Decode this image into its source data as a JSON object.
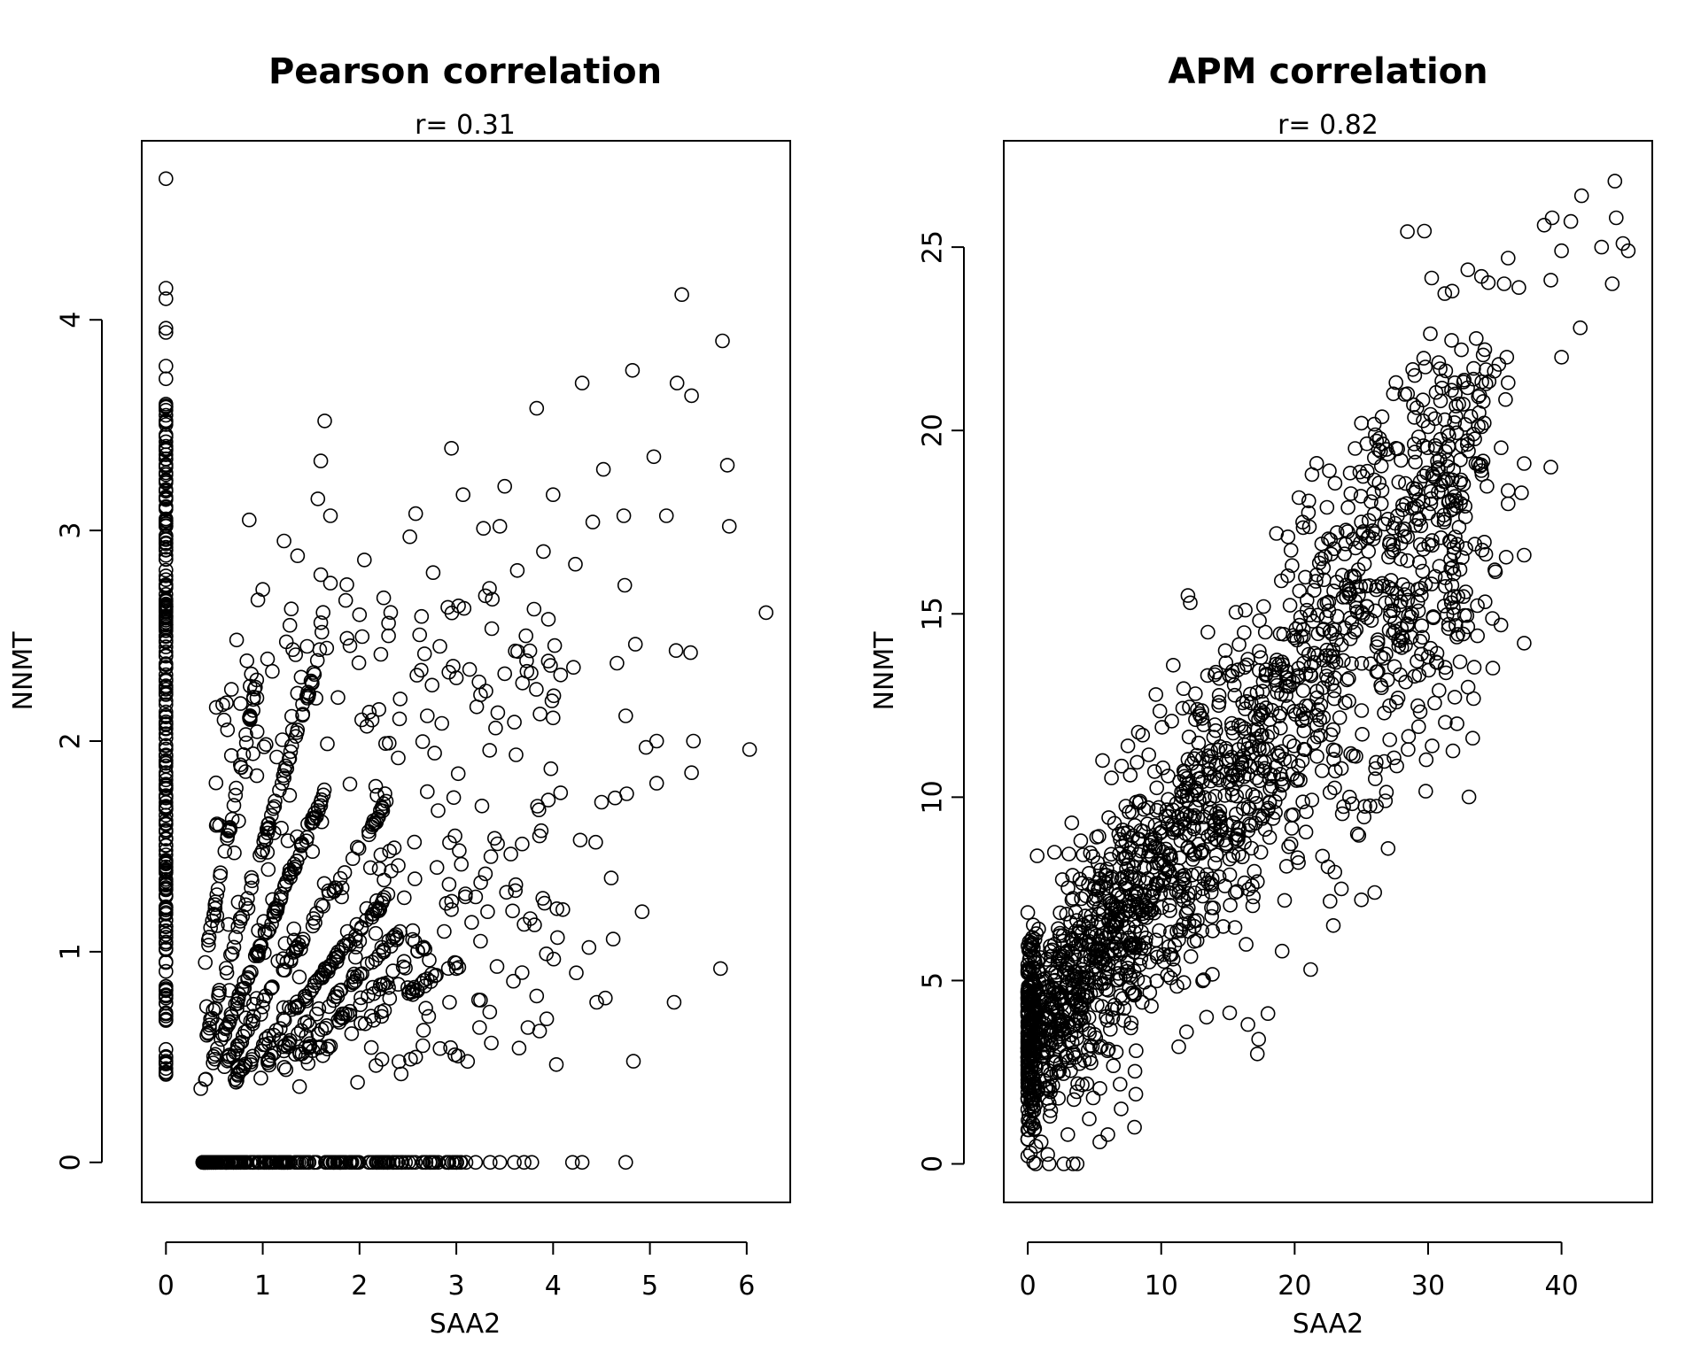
{
  "chart_data": [
    {
      "type": "scatter",
      "title": "Pearson correlation",
      "subtitle": "r= 0.31",
      "xlabel": "SAA2",
      "ylabel": "NNMT",
      "xlim": [
        -0.25,
        6.45
      ],
      "ylim": [
        -0.19,
        4.85
      ],
      "xticks": [
        0,
        1,
        2,
        3,
        4,
        5,
        6
      ],
      "yticks": [
        0,
        1,
        2,
        3,
        4
      ],
      "xtick_labels": [
        "0",
        "1",
        "2",
        "3",
        "4",
        "5",
        "6"
      ],
      "ytick_labels": [
        "0",
        "1",
        "2",
        "3",
        "4"
      ],
      "points": [
        [
          0,
          4.67
        ],
        [
          0,
          4.15
        ],
        [
          0,
          4.1
        ],
        [
          0,
          3.96
        ],
        [
          0,
          3.94
        ],
        [
          0,
          3.78
        ],
        [
          0,
          3.72
        ],
        [
          0,
          3.6
        ],
        [
          5.33,
          4.12
        ],
        [
          5.75,
          3.9
        ],
        [
          4.82,
          3.76
        ],
        [
          4.3,
          3.7
        ],
        [
          5.28,
          3.7
        ],
        [
          3.83,
          3.58
        ],
        [
          1.64,
          3.52
        ],
        [
          5.43,
          3.64
        ],
        [
          2.95,
          3.39
        ],
        [
          5.04,
          3.35
        ],
        [
          1.6,
          3.33
        ],
        [
          4.52,
          3.29
        ],
        [
          5.8,
          3.31
        ],
        [
          3.5,
          3.21
        ],
        [
          3.07,
          3.17
        ],
        [
          1.57,
          3.15
        ],
        [
          4.0,
          3.17
        ],
        [
          1.7,
          3.07
        ],
        [
          2.58,
          3.08
        ],
        [
          0.86,
          3.05
        ],
        [
          4.73,
          3.07
        ],
        [
          5.17,
          3.07
        ],
        [
          3.45,
          3.02
        ],
        [
          5.82,
          3.02
        ],
        [
          4.41,
          3.04
        ],
        [
          2.52,
          2.97
        ],
        [
          3.28,
          3.01
        ],
        [
          1.22,
          2.95
        ],
        [
          1.36,
          2.88
        ],
        [
          2.05,
          2.86
        ],
        [
          3.9,
          2.9
        ],
        [
          4.23,
          2.84
        ],
        [
          2.76,
          2.8
        ],
        [
          1.6,
          2.79
        ],
        [
          3.3,
          2.69
        ],
        [
          1.0,
          2.72
        ],
        [
          0.95,
          2.67
        ],
        [
          1.7,
          2.75
        ],
        [
          4.74,
          2.74
        ],
        [
          2.25,
          2.68
        ],
        [
          3.63,
          2.81
        ],
        [
          5.27,
          2.43
        ],
        [
          6.2,
          2.61
        ],
        [
          3.08,
          2.63
        ],
        [
          0.73,
          2.48
        ],
        [
          2.0,
          2.6
        ],
        [
          2.3,
          2.56
        ],
        [
          1.28,
          2.55
        ],
        [
          4.85,
          2.46
        ],
        [
          3.95,
          2.38
        ],
        [
          4.21,
          2.35
        ],
        [
          5.42,
          2.42
        ],
        [
          4.66,
          2.37
        ],
        [
          3.72,
          2.5
        ],
        [
          2.83,
          2.45
        ],
        [
          1.05,
          2.39
        ],
        [
          3.0,
          2.3
        ],
        [
          3.5,
          2.32
        ],
        [
          1.34,
          2.41
        ],
        [
          0.6,
          2.1
        ],
        [
          4.75,
          2.12
        ],
        [
          2.42,
          2.2
        ],
        [
          3.25,
          2.22
        ],
        [
          4.0,
          2.11
        ],
        [
          0.52,
          2.16
        ],
        [
          3.6,
          2.09
        ],
        [
          5.07,
          2.0
        ],
        [
          5.45,
          2.0
        ],
        [
          4.96,
          1.97
        ],
        [
          6.03,
          1.96
        ],
        [
          3.95,
          1.72
        ],
        [
          5.43,
          1.85
        ],
        [
          5.07,
          1.8
        ],
        [
          4.64,
          1.73
        ],
        [
          4.5,
          1.71
        ],
        [
          4.76,
          1.75
        ],
        [
          3.86,
          1.55
        ],
        [
          4.44,
          1.52
        ],
        [
          3.03,
          1.48
        ],
        [
          2.8,
          1.4
        ],
        [
          4.28,
          1.53
        ],
        [
          4.6,
          1.35
        ],
        [
          3.3,
          1.37
        ],
        [
          3.61,
          1.29
        ],
        [
          4.1,
          1.2
        ],
        [
          4.92,
          1.19
        ],
        [
          3.2,
          1.26
        ],
        [
          3.7,
          1.13
        ],
        [
          4.62,
          1.06
        ],
        [
          4.37,
          1.02
        ],
        [
          3.25,
          1.05
        ],
        [
          3.93,
          0.99
        ],
        [
          4.24,
          0.9
        ],
        [
          2.72,
          0.96
        ],
        [
          3.59,
          0.86
        ],
        [
          5.73,
          0.92
        ],
        [
          3.42,
          0.93
        ],
        [
          3.0,
          0.92
        ],
        [
          4.54,
          0.78
        ],
        [
          4.45,
          0.76
        ],
        [
          5.25,
          0.76
        ],
        [
          3.83,
          0.79
        ],
        [
          3.25,
          0.77
        ],
        [
          2.93,
          0.76
        ],
        [
          4.83,
          0.48
        ],
        [
          3.74,
          0.64
        ],
        [
          3.24,
          0.64
        ],
        [
          2.58,
          0.5
        ],
        [
          2.43,
          0.42
        ],
        [
          1.98,
          0.38
        ],
        [
          1.38,
          0.36
        ],
        [
          0.36,
          0.35
        ],
        [
          0.74,
          0.42
        ],
        [
          0.98,
          0.4
        ],
        [
          1.24,
          0.44
        ],
        [
          0.63,
          0.9
        ],
        [
          0.42,
          0.74
        ],
        [
          0.52,
          1.6
        ],
        [
          0.9,
          1.94
        ],
        [
          2.22,
          1.46
        ],
        [
          2.7,
          1.76
        ],
        [
          2.07,
          1.15
        ],
        [
          1.78,
          1.0
        ],
        [
          2.55,
          1.1
        ],
        [
          2.3,
          0.83
        ],
        [
          1.9,
          0.7
        ],
        [
          1.45,
          0.6
        ],
        [
          2.95,
          1.2
        ],
        [
          2.13,
          2.1
        ],
        [
          2.4,
          1.92
        ],
        [
          2.7,
          2.12
        ],
        [
          2.3,
          2.5
        ],
        [
          2.2,
          2.15
        ]
      ]
    },
    {
      "type": "scatter",
      "title": "APM correlation",
      "subtitle": "r= 0.82",
      "xlabel": "SAA2",
      "ylabel": "NNMT",
      "xlim": [
        -1.8,
        46.8
      ],
      "ylim": [
        -1.05,
        27.9
      ],
      "xticks": [
        0,
        10,
        20,
        30,
        40
      ],
      "yticks": [
        0,
        5,
        10,
        15,
        20,
        25
      ],
      "xtick_labels": [
        "0",
        "10",
        "20",
        "30",
        "40"
      ],
      "ytick_labels": [
        "0",
        "5",
        "10",
        "15",
        "20",
        "25"
      ],
      "points": [
        [
          44.0,
          26.8
        ],
        [
          41.5,
          26.4
        ],
        [
          39.3,
          25.8
        ],
        [
          44.1,
          25.8
        ],
        [
          40.7,
          25.7
        ],
        [
          38.7,
          25.6
        ],
        [
          44.6,
          25.1
        ],
        [
          45.0,
          24.9
        ],
        [
          43.0,
          25.0
        ],
        [
          40.0,
          24.9
        ],
        [
          36.0,
          24.7
        ],
        [
          39.2,
          24.1
        ],
        [
          43.8,
          24.0
        ],
        [
          35.7,
          24.0
        ],
        [
          36.8,
          23.9
        ],
        [
          34.0,
          24.2
        ],
        [
          31.8,
          23.8
        ],
        [
          41.4,
          22.8
        ],
        [
          40.0,
          22.0
        ],
        [
          37.2,
          19.1
        ],
        [
          39.2,
          19.0
        ],
        [
          32.5,
          22.2
        ],
        [
          35.9,
          22.0
        ],
        [
          35.3,
          21.8
        ],
        [
          32.0,
          21.3
        ],
        [
          33.4,
          21.4
        ],
        [
          29.0,
          21.5
        ],
        [
          36.0,
          21.3
        ],
        [
          27.4,
          21.0
        ],
        [
          28.9,
          20.7
        ],
        [
          30.0,
          20.1
        ],
        [
          34.0,
          20.1
        ],
        [
          33.4,
          19.9
        ],
        [
          25.0,
          20.2
        ],
        [
          37.0,
          18.3
        ],
        [
          36.0,
          18.0
        ],
        [
          37.2,
          16.6
        ],
        [
          35.0,
          16.2
        ],
        [
          33.5,
          16.9
        ],
        [
          33.7,
          14.4
        ],
        [
          37.2,
          14.2
        ],
        [
          33.0,
          13.0
        ],
        [
          22.6,
          18.9
        ],
        [
          21.3,
          18.8
        ],
        [
          24.0,
          17.9
        ],
        [
          20.6,
          17.5
        ],
        [
          19.5,
          17.1
        ],
        [
          26.5,
          18.0
        ],
        [
          27.1,
          16.9
        ],
        [
          30.3,
          17.0
        ],
        [
          31.2,
          17.5
        ],
        [
          31.8,
          18.1
        ],
        [
          29.4,
          18.6
        ],
        [
          30.2,
          18.0
        ],
        [
          32.0,
          18.2
        ],
        [
          26.0,
          7.4
        ],
        [
          25.0,
          7.2
        ],
        [
          22.9,
          6.5
        ],
        [
          21.2,
          5.3
        ],
        [
          18.0,
          4.1
        ],
        [
          17.3,
          3.4
        ],
        [
          16.5,
          3.8
        ],
        [
          17.2,
          3.0
        ],
        [
          13.4,
          4.0
        ],
        [
          11.9,
          3.6
        ],
        [
          8.0,
          1.0
        ],
        [
          5.4,
          0.6
        ],
        [
          6.0,
          0.8
        ],
        [
          3.4,
          0.0
        ],
        [
          2.7,
          0.0
        ],
        [
          0.6,
          0.0
        ],
        [
          1.6,
          0.0
        ],
        [
          3.7,
          0.0
        ],
        [
          0.2,
          0.3
        ],
        [
          1.0,
          0.6
        ],
        [
          3.0,
          0.8
        ],
        [
          4.9,
          1.8
        ],
        [
          7.0,
          1.5
        ],
        [
          8.1,
          1.9
        ],
        [
          1.2,
          3.1
        ],
        [
          0.4,
          4.5
        ],
        [
          0.7,
          8.4
        ],
        [
          2.0,
          8.5
        ],
        [
          3.3,
          9.3
        ],
        [
          5.6,
          11.0
        ],
        [
          7.5,
          11.4
        ],
        [
          9.6,
          12.8
        ],
        [
          10.9,
          13.6
        ],
        [
          12.0,
          15.5
        ],
        [
          13.5,
          14.5
        ],
        [
          16.3,
          15.1
        ],
        [
          17.8,
          14.5
        ],
        [
          19.0,
          15.9
        ],
        [
          20.8,
          16.0
        ],
        [
          22.0,
          16.5
        ],
        [
          24.5,
          16.0
        ],
        [
          26.8,
          15.3
        ],
        [
          28.0,
          14.6
        ],
        [
          29.5,
          13.9
        ],
        [
          30.3,
          11.4
        ],
        [
          28.5,
          11.3
        ],
        [
          27.0,
          8.6
        ],
        [
          26.8,
          9.9
        ],
        [
          24.7,
          9.0
        ],
        [
          23.5,
          7.5
        ],
        [
          22.5,
          8.1
        ]
      ],
      "cluster": true
    }
  ]
}
